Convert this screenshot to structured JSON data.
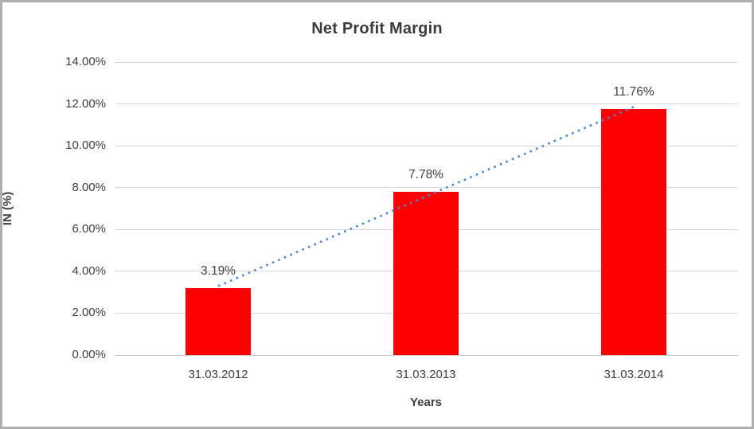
{
  "chart_data": {
    "type": "bar",
    "title": "Net Profit Margin",
    "categories": [
      "31.03.2012",
      "31.03.2013",
      "31.03.2014"
    ],
    "values": [
      3.19,
      7.78,
      11.76
    ],
    "data_labels": [
      "3.19%",
      "7.78%",
      "11.76%"
    ],
    "xlabel": "Years",
    "ylabel": "IN (%)",
    "ylim": [
      0,
      14
    ],
    "ytick_step": 2,
    "ytick_labels": [
      "0.00%",
      "2.00%",
      "4.00%",
      "6.00%",
      "8.00%",
      "10.00%",
      "12.00%",
      "14.00%"
    ],
    "grid": true,
    "legend": false,
    "trendline": {
      "type": "linear",
      "style": "dotted",
      "color": "#4a86c8"
    },
    "colors": {
      "bar": "#ff0000",
      "gridline": "#d9d9d9",
      "axis_line": "#c3c3c3",
      "text": "#404040",
      "border": "#aeaeae",
      "background": "#ffffff"
    }
  }
}
